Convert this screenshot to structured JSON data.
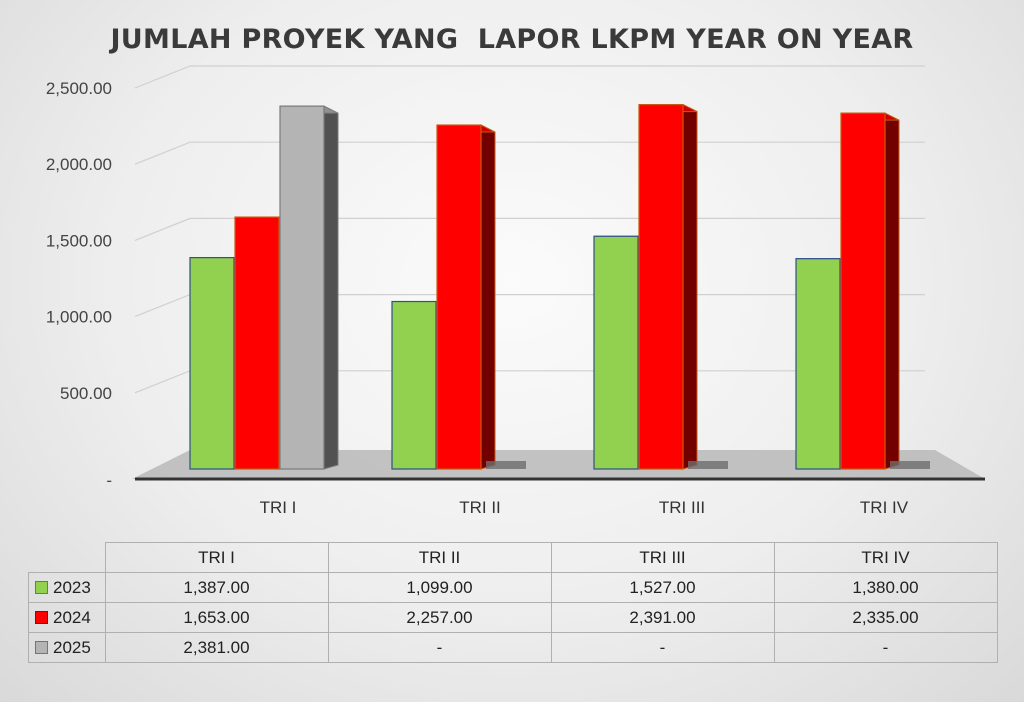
{
  "chart_data": {
    "type": "bar",
    "title": "JUMLAH PROYEK YANG  LAPOR LKPM YEAR ON YEAR",
    "categories": [
      "TRI I",
      "TRI II",
      "TRI III",
      "TRI IV"
    ],
    "series": [
      {
        "name": "2023",
        "color": "#92d050",
        "values": [
          1387.0,
          1099.0,
          1527.0,
          1380.0
        ],
        "labels": [
          "1,387.00",
          "1,099.00",
          "1,527.00",
          "1,380.00"
        ]
      },
      {
        "name": "2024",
        "color": "#ff0000",
        "values": [
          1653.0,
          2257.0,
          2391.0,
          2335.0
        ],
        "labels": [
          "1,653.00",
          "2,257.00",
          "2,391.00",
          "2,335.00"
        ]
      },
      {
        "name": "2025",
        "color": "#b4b4b4",
        "values": [
          2381.0,
          null,
          null,
          null
        ],
        "labels": [
          "2,381.00",
          "-",
          "-",
          "-"
        ]
      }
    ],
    "y_ticks": [
      0,
      500,
      1000,
      1500,
      2000,
      2500
    ],
    "y_tick_labels": [
      "-",
      "500.00",
      "1,000.00",
      "1,500.00",
      "2,000.00",
      "2,500.00"
    ],
    "ylim": [
      0,
      2500
    ],
    "grid": true,
    "legend": "data-table"
  }
}
